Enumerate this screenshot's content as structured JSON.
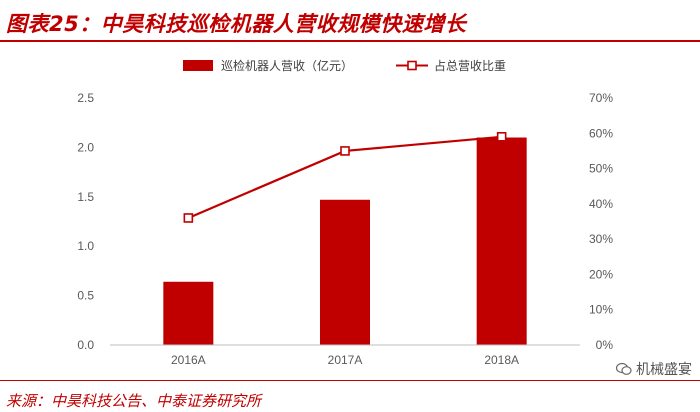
{
  "header": {
    "title": "图表25：中昊科技巡检机器人营收规模快速增长"
  },
  "footer": {
    "source": "来源：中昊科技公告、中泰证券研究所",
    "watermark": "机械盛宴"
  },
  "colors": {
    "accent": "#c00000",
    "bar": "#c00000",
    "line": "#c00000"
  },
  "icons": {
    "watermark": "wechat-icon"
  },
  "chart_data": {
    "type": "bar+line",
    "categories": [
      "2016A",
      "2017A",
      "2018A"
    ],
    "series": [
      {
        "name": "巡检机器人营收（亿元）",
        "type": "bar",
        "axis": "left",
        "values": [
          0.64,
          1.47,
          2.1
        ]
      },
      {
        "name": "占总营收比重",
        "type": "line",
        "axis": "right",
        "values": [
          0.36,
          0.55,
          0.59
        ]
      }
    ],
    "yleft": {
      "range": [
        0,
        2.5
      ],
      "ticks": [
        "0.0",
        "0.5",
        "1.0",
        "1.5",
        "2.0",
        "2.5"
      ]
    },
    "yright": {
      "range": [
        0,
        0.7
      ],
      "ticks": [
        "0%",
        "10%",
        "20%",
        "30%",
        "40%",
        "50%",
        "60%",
        "70%"
      ]
    },
    "legend": "top-center",
    "grid": false
  }
}
